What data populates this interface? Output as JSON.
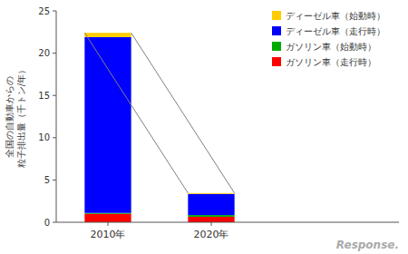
{
  "chart_data": {
    "type": "bar",
    "stacked": true,
    "ylabel": "全国の自動車からの\n粒子排出量（千トン/年）",
    "categories": [
      "2010年",
      "2020年"
    ],
    "series": [
      {
        "name": "ガソリン車（走行時）",
        "color": "#ff0000",
        "values": [
          1.0,
          0.65
        ]
      },
      {
        "name": "ガソリン車（始動時）",
        "color": "#00aa00",
        "values": [
          0.1,
          0.2
        ]
      },
      {
        "name": "ディーゼル車（走行時）",
        "color": "#0000ff",
        "values": [
          20.8,
          2.5
        ]
      },
      {
        "name": "ディーゼル車（始動時）",
        "color": "#ffcc00",
        "values": [
          0.5,
          0.1
        ]
      }
    ],
    "ylim": [
      0,
      25
    ],
    "yticks": [
      0,
      5,
      10,
      15,
      20,
      25
    ],
    "grid": false,
    "legend": "upper right",
    "annotations": [
      "Response."
    ]
  }
}
